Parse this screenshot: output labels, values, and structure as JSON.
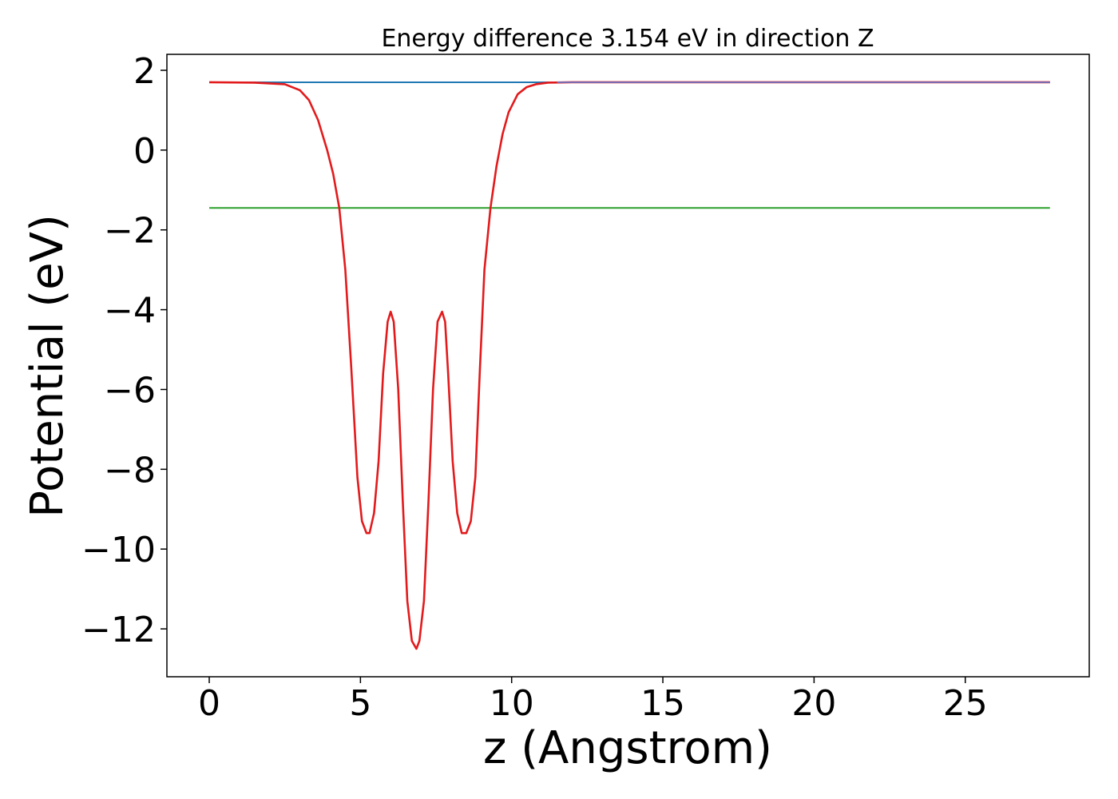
{
  "chart_data": {
    "type": "line",
    "title": "Energy difference 3.154 eV in direction Z",
    "xlabel": "z (Angstrom)",
    "ylabel": "Potential (eV)",
    "xlim": [
      -1.4,
      29.1
    ],
    "ylim": [
      -13.2,
      2.4
    ],
    "xticks": [
      0,
      5,
      10,
      15,
      20,
      25
    ],
    "yticks": [
      2,
      0,
      -2,
      -4,
      -6,
      -8,
      -10,
      -12
    ],
    "xtick_labels": [
      "0",
      "5",
      "10",
      "15",
      "20",
      "25"
    ],
    "ytick_labels": [
      "2",
      "0",
      "−2",
      "−4",
      "−6",
      "−8",
      "−10",
      "−12"
    ],
    "grid": false,
    "legend": "none",
    "series": [
      {
        "color": "#1f77b4",
        "x": [
          0,
          27.8
        ],
        "y": [
          1.7,
          1.7
        ]
      },
      {
        "color": "#2ca02c",
        "x": [
          0,
          27.8
        ],
        "y": [
          -1.45,
          -1.45
        ]
      },
      {
        "color": "#e31a1c",
        "x": [
          0,
          1.5,
          2.5,
          3.0,
          3.3,
          3.6,
          3.9,
          4.1,
          4.3,
          4.5,
          4.7,
          4.9,
          5.05,
          5.2,
          5.3,
          5.45,
          5.6,
          5.75,
          5.9,
          6.0,
          6.1,
          6.25,
          6.4,
          6.55,
          6.7,
          6.85,
          6.95,
          7.1,
          7.25,
          7.4,
          7.55,
          7.7,
          7.8,
          7.9,
          8.05,
          8.2,
          8.35,
          8.5,
          8.65,
          8.8,
          8.95,
          9.1,
          9.3,
          9.5,
          9.7,
          9.9,
          10.2,
          10.5,
          10.8,
          11.2,
          12.0,
          13.5,
          27.8
        ],
        "y": [
          1.7,
          1.69,
          1.65,
          1.5,
          1.25,
          0.75,
          0.0,
          -0.6,
          -1.45,
          -3.0,
          -5.5,
          -8.2,
          -9.3,
          -9.6,
          -9.6,
          -9.1,
          -7.8,
          -5.6,
          -4.3,
          -4.05,
          -4.3,
          -6.0,
          -8.8,
          -11.3,
          -12.3,
          -12.5,
          -12.3,
          -11.3,
          -8.8,
          -6.0,
          -4.3,
          -4.05,
          -4.3,
          -5.6,
          -7.8,
          -9.1,
          -9.6,
          -9.6,
          -9.3,
          -8.2,
          -5.5,
          -3.0,
          -1.45,
          -0.4,
          0.4,
          0.95,
          1.4,
          1.58,
          1.65,
          1.69,
          1.7,
          1.7,
          1.7
        ]
      },
      {
        "color": "#7b6bb2",
        "x": [
          11.5,
          27.8
        ],
        "y": [
          1.7,
          1.7
        ]
      }
    ]
  }
}
